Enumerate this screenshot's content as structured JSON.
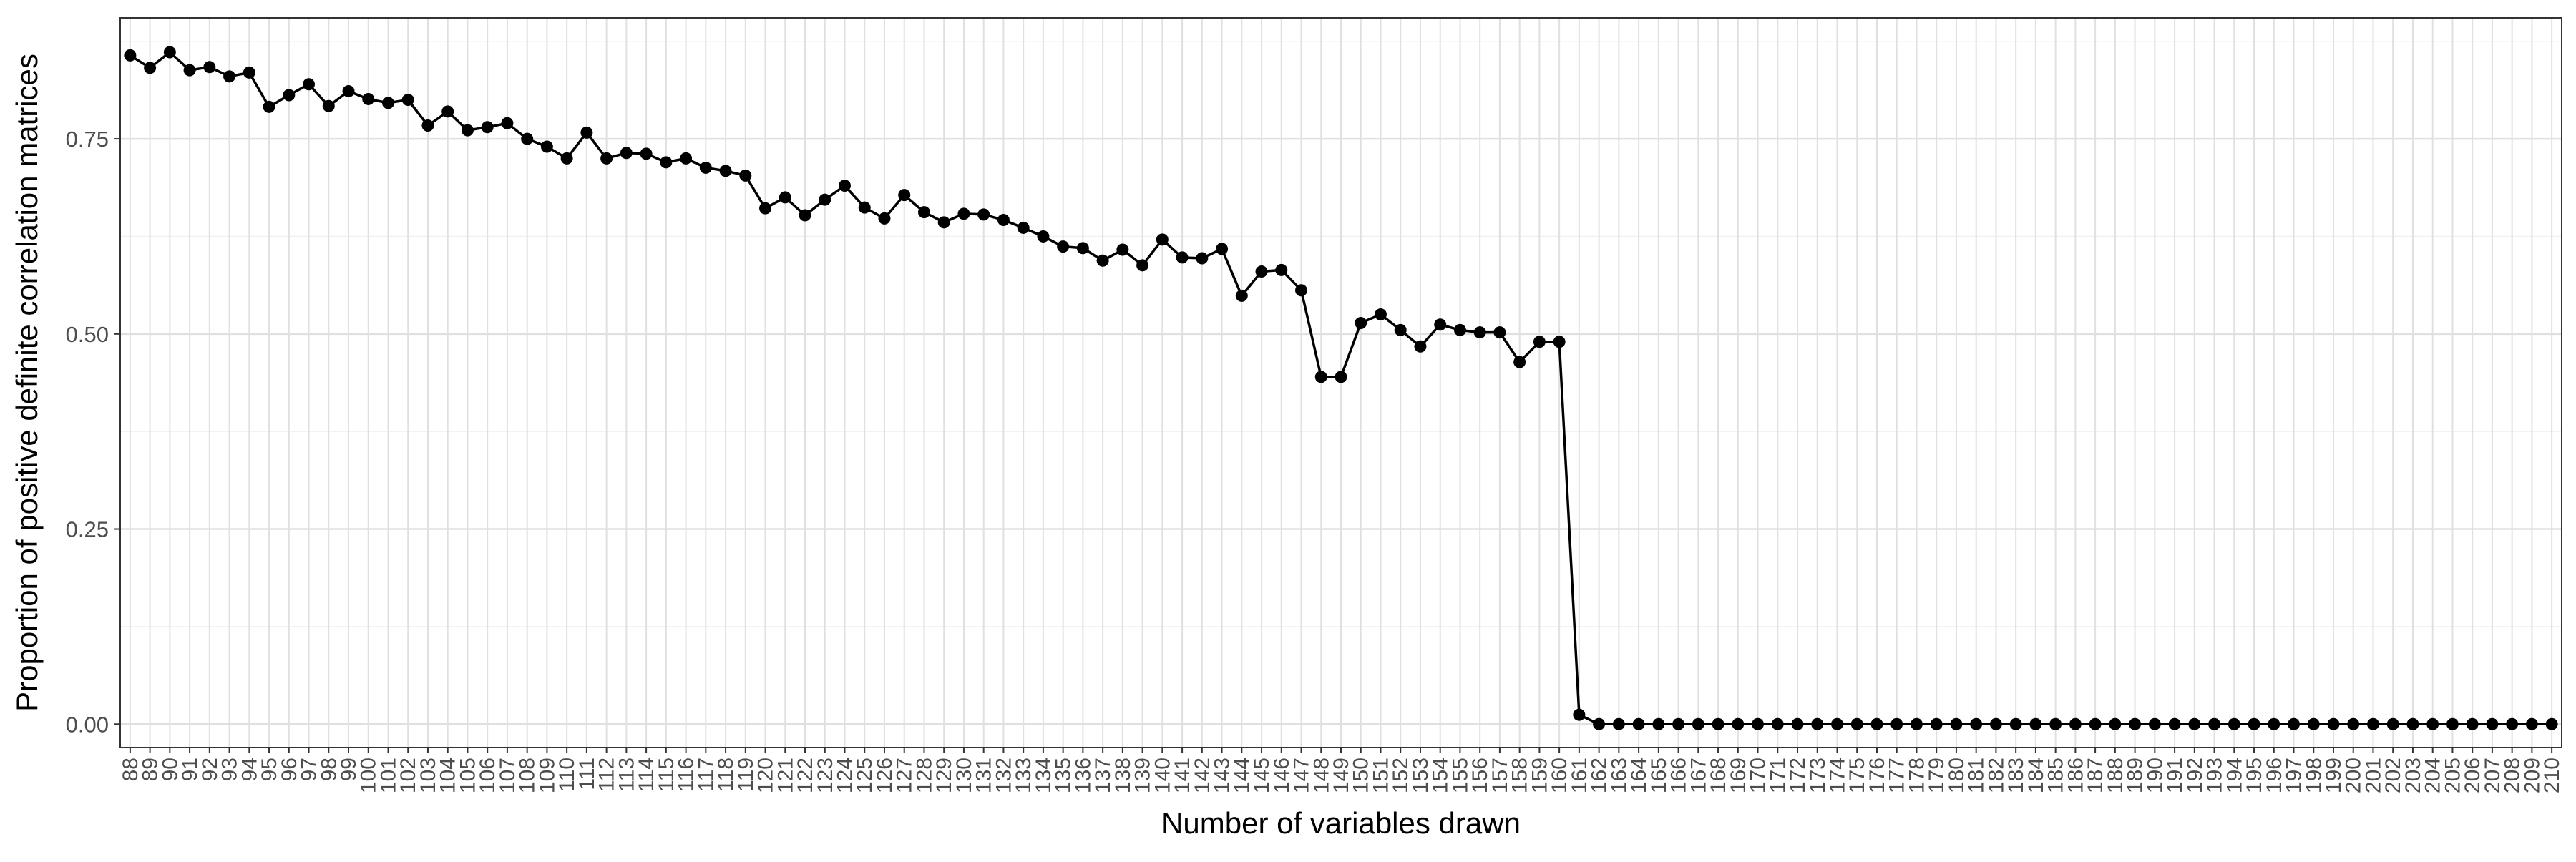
{
  "chart_data": {
    "type": "line",
    "title": "",
    "xlabel": "Number of variables drawn",
    "ylabel": "Proportion of positive definite correlation matrices",
    "x": [
      88,
      89,
      90,
      91,
      92,
      93,
      94,
      95,
      96,
      97,
      98,
      99,
      100,
      101,
      102,
      103,
      104,
      105,
      106,
      107,
      108,
      109,
      110,
      111,
      112,
      113,
      114,
      115,
      116,
      117,
      118,
      119,
      120,
      121,
      122,
      123,
      124,
      125,
      126,
      127,
      128,
      129,
      130,
      131,
      132,
      133,
      134,
      135,
      136,
      137,
      138,
      139,
      140,
      141,
      142,
      143,
      144,
      145,
      146,
      147,
      148,
      149,
      150,
      151,
      152,
      153,
      154,
      155,
      156,
      157,
      158,
      159,
      160,
      161,
      162,
      163,
      164,
      165,
      166,
      167,
      168,
      169,
      170,
      171,
      172,
      173,
      174,
      175,
      176,
      177,
      178,
      179,
      180,
      181,
      182,
      183,
      184,
      185,
      186,
      187,
      188,
      189,
      190,
      191,
      192,
      193,
      194,
      195,
      196,
      197,
      198,
      199,
      200,
      201,
      202,
      203,
      204,
      205,
      206,
      207,
      208,
      209,
      210
    ],
    "series": [
      {
        "values": [
          0.857,
          0.841,
          0.861,
          0.838,
          0.842,
          0.83,
          0.835,
          0.791,
          0.806,
          0.82,
          0.792,
          0.811,
          0.801,
          0.796,
          0.8,
          0.767,
          0.785,
          0.761,
          0.765,
          0.77,
          0.75,
          0.74,
          0.725,
          0.758,
          0.725,
          0.732,
          0.731,
          0.72,
          0.725,
          0.713,
          0.709,
          0.703,
          0.661,
          0.675,
          0.652,
          0.672,
          0.69,
          0.662,
          0.648,
          0.678,
          0.656,
          0.643,
          0.654,
          0.653,
          0.646,
          0.636,
          0.625,
          0.612,
          0.61,
          0.594,
          0.608,
          0.588,
          0.621,
          0.598,
          0.597,
          0.609,
          0.549,
          0.58,
          0.582,
          0.556,
          0.445,
          0.445,
          0.514,
          0.525,
          0.505,
          0.484,
          0.512,
          0.505,
          0.502,
          0.502,
          0.464,
          0.49,
          0.49,
          0.012,
          0,
          0,
          0,
          0,
          0,
          0,
          0,
          0,
          0,
          0,
          0,
          0,
          0,
          0,
          0,
          0,
          0,
          0,
          0,
          0,
          0,
          0,
          0,
          0,
          0,
          0,
          0,
          0,
          0,
          0,
          0,
          0,
          0,
          0,
          0,
          0,
          0,
          0,
          0,
          0,
          0,
          0,
          0,
          0,
          0,
          0,
          0,
          0,
          0
        ],
        "color": "#000000"
      }
    ],
    "yticks": [
      0,
      0.25,
      0.5,
      0.75
    ],
    "ytick_labels": [
      "0.00",
      "0.25",
      "0.50",
      "0.75"
    ],
    "xtick_labels": [
      "88",
      "89",
      "90",
      "91",
      "92",
      "93",
      "94",
      "95",
      "96",
      "97",
      "98",
      "99",
      "100",
      "101",
      "102",
      "103",
      "104",
      "105",
      "106",
      "107",
      "108",
      "109",
      "110",
      "111",
      "112",
      "113",
      "114",
      "115",
      "116",
      "117",
      "118",
      "119",
      "120",
      "121",
      "122",
      "123",
      "124",
      "125",
      "126",
      "127",
      "128",
      "129",
      "130",
      "131",
      "132",
      "133",
      "134",
      "135",
      "136",
      "137",
      "138",
      "139",
      "140",
      "141",
      "142",
      "143",
      "144",
      "145",
      "146",
      "147",
      "148",
      "149",
      "150",
      "151",
      "152",
      "153",
      "154",
      "155",
      "156",
      "157",
      "158",
      "159",
      "160",
      "161",
      "162",
      "163",
      "164",
      "165",
      "166",
      "167",
      "168",
      "169",
      "170",
      "171",
      "172",
      "173",
      "174",
      "175",
      "176",
      "177",
      "178",
      "179",
      "180",
      "181",
      "182",
      "183",
      "184",
      "185",
      "186",
      "187",
      "188",
      "189",
      "190",
      "191",
      "192",
      "193",
      "194",
      "195",
      "196",
      "197",
      "198",
      "199",
      "200",
      "201",
      "202",
      "203",
      "204",
      "205",
      "206",
      "207",
      "208",
      "209",
      "210"
    ],
    "xlim": [
      87.5,
      210.5
    ],
    "ylim": [
      -0.03,
      0.905
    ],
    "grid": true,
    "legend": "none",
    "colors": {
      "background": "#ffffff",
      "grid_major": "#e0e0e0",
      "grid_minor": "#f0f0f0",
      "panel_border": "#333333"
    }
  }
}
